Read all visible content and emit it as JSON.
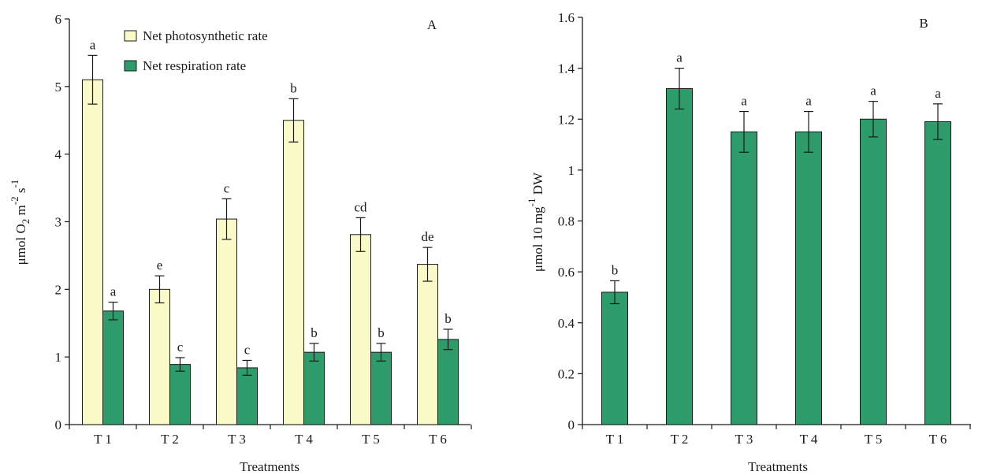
{
  "chart_data": [
    {
      "type": "bar",
      "panel_label": "A",
      "title": "",
      "xlabel": "Treatments",
      "ylabel": {
        "prefix": "μmol O",
        "sub": "2",
        "mid": " m",
        "sup1": "-2",
        "mid2": " s",
        "sup2": "-1"
      },
      "categories": [
        "T1",
        "T2",
        "T3",
        "T4",
        "T5",
        "T6"
      ],
      "ylim": [
        0,
        6
      ],
      "yticks": [
        0,
        1,
        2,
        3,
        4,
        5,
        6
      ],
      "grid": false,
      "legend_position": "top-center",
      "series": [
        {
          "name": "Net photosynthetic rate",
          "color": "#fafac8",
          "values": [
            5.1,
            2.0,
            3.04,
            4.5,
            2.81,
            2.37
          ],
          "errors": [
            0.36,
            0.2,
            0.3,
            0.32,
            0.25,
            0.25
          ],
          "labels": [
            "a",
            "e",
            "c",
            "b",
            "cd",
            "de"
          ]
        },
        {
          "name": "Net respiration rate",
          "color": "#2e9b6a",
          "values": [
            1.68,
            0.89,
            0.84,
            1.07,
            1.07,
            1.26
          ],
          "errors": [
            0.13,
            0.1,
            0.11,
            0.13,
            0.13,
            0.15
          ],
          "labels": [
            "a",
            "c",
            "c",
            "b",
            "b",
            "b"
          ]
        }
      ]
    },
    {
      "type": "bar",
      "panel_label": "B",
      "title": "",
      "xlabel": "Treatments",
      "ylabel": {
        "prefix": "μmol 10  mg",
        "sup1": "-1",
        "mid": " DW"
      },
      "categories": [
        "T1",
        "T2",
        "T3",
        "T4",
        "T5",
        "T6"
      ],
      "ylim": [
        0,
        1.6
      ],
      "yticks": [
        "0",
        "0.2",
        "0.4",
        "0.6",
        "0.8",
        "1",
        "1.2",
        "1.4",
        "1.6"
      ],
      "grid": false,
      "series": [
        {
          "color": "#2e9b6a",
          "values": [
            0.52,
            1.32,
            1.15,
            1.15,
            1.2,
            1.19
          ],
          "errors": [
            0.045,
            0.08,
            0.08,
            0.08,
            0.07,
            0.07
          ],
          "labels": [
            "b",
            "a",
            "a",
            "a",
            "a",
            "a"
          ]
        }
      ]
    }
  ]
}
